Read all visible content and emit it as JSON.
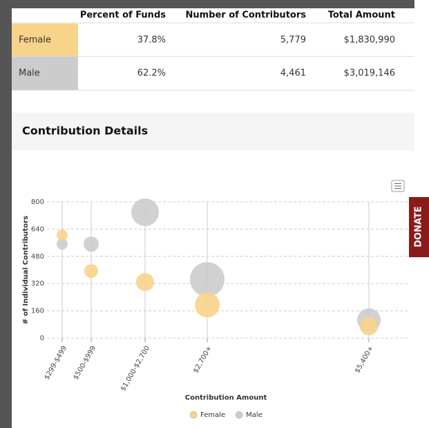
{
  "table": {
    "header": [
      "Percent of Funds",
      "Number of Contributors",
      "Total Amount"
    ],
    "rows": [
      [
        "Female",
        "37.8%",
        "5,779",
        "$1,830,990"
      ],
      [
        "Male",
        "62.2%",
        "4,461",
        "$3,019,146"
      ]
    ]
  },
  "section_title": "Contribution Details",
  "donate": "DONATE",
  "chart_data": {
    "type": "bubble",
    "categories": [
      "$299-$499",
      "$500-$999",
      "$1,000-$2,700",
      "$2,700+",
      "$5,400+"
    ],
    "x_label": "Contribution Amount",
    "y_label": "# of Individual Contributors",
    "ylim": [
      0,
      800
    ],
    "yticks": [
      0,
      160,
      320,
      480,
      640,
      800
    ],
    "grid": true,
    "legend": "bottom",
    "series": [
      {
        "name": "Female",
        "color": "#f8d38a",
        "values": [
          605,
          394,
          329,
          195,
          69
        ],
        "sizes": [
          64,
          100,
          169,
          324,
          169
        ]
      },
      {
        "name": "Male",
        "color": "#cccccc",
        "values": [
          552,
          552,
          739,
          345,
          106
        ],
        "sizes": [
          64,
          121,
          400,
          625,
          289
        ]
      }
    ]
  }
}
